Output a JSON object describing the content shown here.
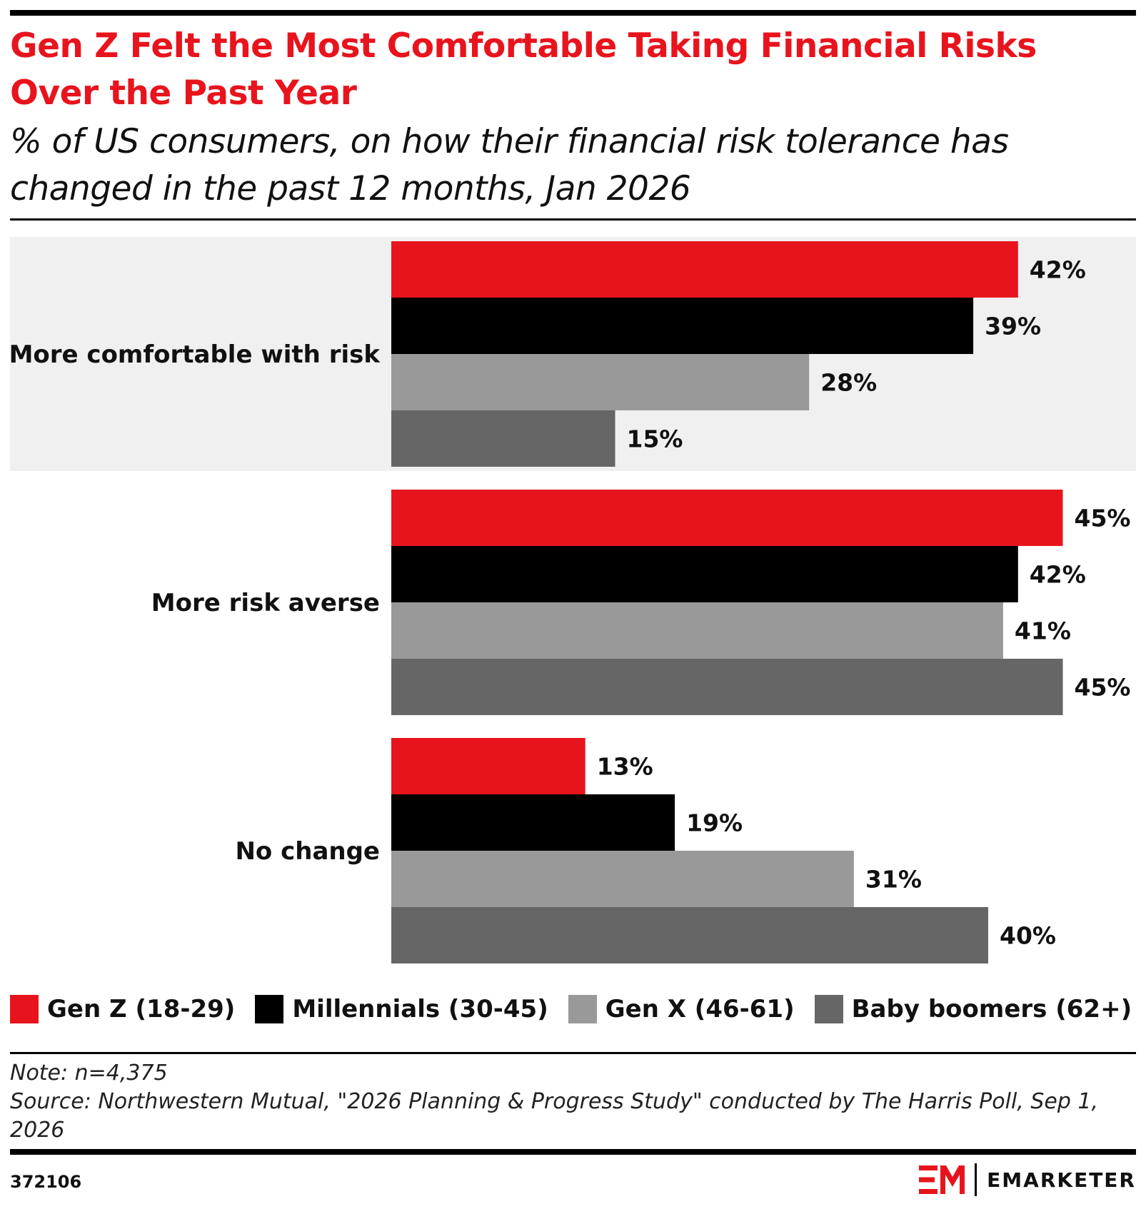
{
  "header": {
    "title": "Gen Z Felt the Most Comfortable Taking Financial Risks Over the Past Year",
    "subtitle": "% of US consumers, on how their financial risk tolerance has changed in the past 12 months, Jan 2026"
  },
  "chart_data": {
    "type": "bar",
    "orientation": "horizontal",
    "categories": [
      "More comfortable with risk",
      "More risk averse",
      "No change"
    ],
    "series": [
      {
        "name": "Gen Z (18-29)",
        "color": "#e8141d",
        "values": [
          42,
          45,
          13
        ]
      },
      {
        "name": "Millennials (30-45)",
        "color": "#000000",
        "values": [
          39,
          42,
          19
        ]
      },
      {
        "name": "Gen X (46-61)",
        "color": "#999999",
        "values": [
          28,
          41,
          31
        ]
      },
      {
        "name": "Baby boomers (62+)",
        "color": "#666666",
        "values": [
          15,
          45,
          40
        ]
      }
    ],
    "value_suffix": "%",
    "xlim": [
      0,
      45
    ],
    "grid": false,
    "legend_position": "bottom",
    "highlight_category_background": "#f0f0f0"
  },
  "legend": [
    {
      "label": "Gen Z (18-29)",
      "color": "#e8141d"
    },
    {
      "label": "Millennials (30-45)",
      "color": "#000000"
    },
    {
      "label": "Gen X (46-61)",
      "color": "#999999"
    },
    {
      "label": "Baby boomers (62+)",
      "color": "#666666"
    }
  ],
  "footer": {
    "note": "Note: n=4,375",
    "source": "Source: Northwestern Mutual, \"2026 Planning & Progress Study\" conducted by The Harris Poll, Sep 1, 2026",
    "chart_id": "372106",
    "brand": "EMARKETER",
    "brand_mark": "EM",
    "brand_color": "#e8141d"
  }
}
